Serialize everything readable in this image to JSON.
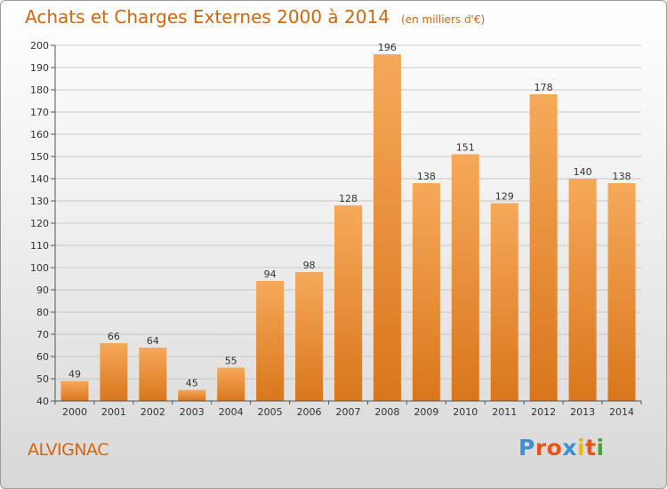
{
  "header": {
    "title": "Achats et Charges Externes 2000 à 2014",
    "subtitle": "(en milliers d'€)"
  },
  "footer": {
    "commune": "ALVIGNAC",
    "logo_text": "Proxiti",
    "logo_colors": [
      "#3a8fd6",
      "#e8541a",
      "#e8541a",
      "#3a8fd6",
      "#f2b400",
      "#e8541a",
      "#4aa33a"
    ]
  },
  "colors": {
    "bar_light": "#f6a95a",
    "bar_dark": "#d9761c",
    "grid": "#c8c8c8",
    "axis": "#555555",
    "title": "#d4660f"
  },
  "chart_data": {
    "type": "bar",
    "title": "Achats et Charges Externes 2000 à 2014",
    "subtitle": "(en milliers d'€)",
    "xlabel": "",
    "ylabel": "",
    "categories": [
      "2000",
      "2001",
      "2002",
      "2003",
      "2004",
      "2005",
      "2006",
      "2007",
      "2008",
      "2009",
      "2010",
      "2011",
      "2012",
      "2013",
      "2014"
    ],
    "values": [
      49,
      66,
      64,
      45,
      55,
      94,
      98,
      128,
      196,
      138,
      151,
      129,
      178,
      140,
      138
    ],
    "ylim": [
      40,
      200
    ],
    "yticks": [
      40,
      50,
      60,
      70,
      80,
      90,
      100,
      110,
      120,
      130,
      140,
      150,
      160,
      170,
      180,
      190,
      200
    ],
    "grid": true,
    "legend": "none"
  }
}
